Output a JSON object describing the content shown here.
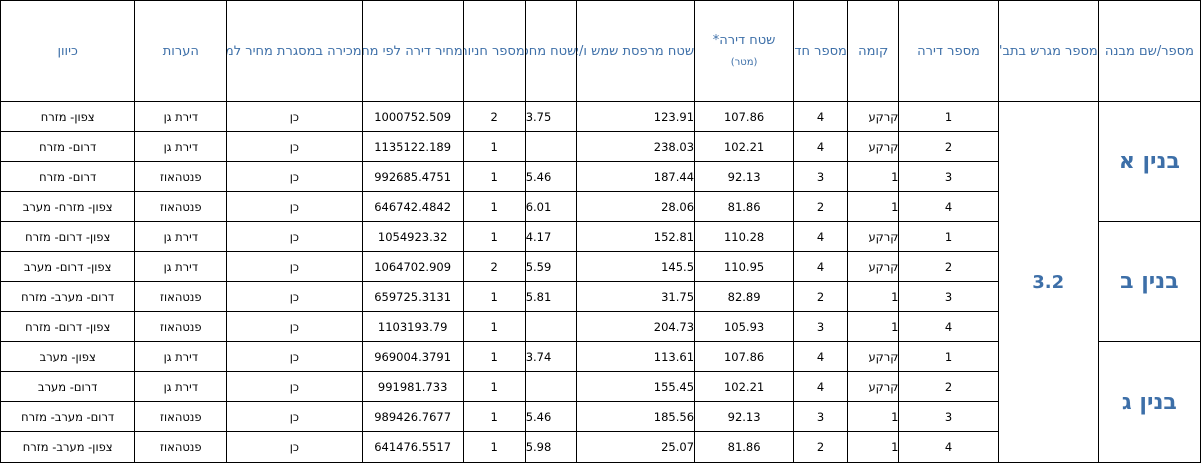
{
  "headers": {
    "building": "מספר/שם מבנה",
    "plot": "מספר מגרש בתב\"ע",
    "apartment": "מספר דירה",
    "floor": "קומה",
    "rooms": "מספר חדרים",
    "area": "שטח דירה*",
    "area_unit": "(מטר)",
    "balcony": "שטח מרפסת שמש ו/או שטח גינה צמודה",
    "storage": "שטח מחסן",
    "parking": "מספר חניות",
    "price": "מחיר דירה לפי מחיר למשתכן",
    "sold": "מכירה במסגרת מחיר למשתכן (כן/לא)",
    "notes": "הערות",
    "direction": "כיוון"
  },
  "plot_number": "3.2",
  "buildings": [
    {
      "name": "בנין א",
      "rows": [
        {
          "apt": "1",
          "floor": "קרקע",
          "rooms": "4",
          "area": "107.86",
          "balcony": "123.91",
          "storage": "3.75",
          "parking": "2",
          "price": "1000752.509",
          "sold": "כן",
          "notes": "דירת גן",
          "direction": "צפון- מזרח"
        },
        {
          "apt": "2",
          "floor": "קרקע",
          "rooms": "4",
          "area": "102.21",
          "balcony": "238.03",
          "storage": "",
          "parking": "1",
          "price": "1135122.189",
          "sold": "כן",
          "notes": "דירת גן",
          "direction": "דרום- מזרח"
        },
        {
          "apt": "3",
          "floor": "1",
          "rooms": "3",
          "area": "92.13",
          "balcony": "187.44",
          "storage": "5.46",
          "parking": "1",
          "price": "992685.4751",
          "sold": "כן",
          "notes": "פנטהאוז",
          "direction": "דרום- מזרח"
        },
        {
          "apt": "4",
          "floor": "1",
          "rooms": "2",
          "area": "81.86",
          "balcony": "28.06",
          "storage": "6.01",
          "parking": "1",
          "price": "646742.4842",
          "sold": "כן",
          "notes": "פנטהאוז",
          "direction": "צפון- מזרח- מערב"
        }
      ]
    },
    {
      "name": "בנין ב",
      "rows": [
        {
          "apt": "1",
          "floor": "קרקע",
          "rooms": "4",
          "area": "110.28",
          "balcony": "152.81",
          "storage": "4.17",
          "parking": "1",
          "price": "1054923.32",
          "sold": "כן",
          "notes": "דירת גן",
          "direction": "צפון- דרום- מזרח"
        },
        {
          "apt": "2",
          "floor": "קרקע",
          "rooms": "4",
          "area": "110.95",
          "balcony": "145.5",
          "storage": "5.59",
          "parking": "2",
          "price": "1064702.909",
          "sold": "כן",
          "notes": "דירת גן",
          "direction": "צפון- דרום- מערב"
        },
        {
          "apt": "3",
          "floor": "1",
          "rooms": "2",
          "area": "82.89",
          "balcony": "31.75",
          "storage": "5.81",
          "parking": "1",
          "price": "659725.3131",
          "sold": "כן",
          "notes": "פנטהאוז",
          "direction": "דרום- מערב- מזרח"
        },
        {
          "apt": "4",
          "floor": "1",
          "rooms": "3",
          "area": "105.93",
          "balcony": "204.73",
          "storage": "",
          "parking": "1",
          "price": "1103193.79",
          "sold": "כן",
          "notes": "פנטהאוז",
          "direction": "צפון- דרום- מזרח"
        }
      ]
    },
    {
      "name": "בנין ג",
      "rows": [
        {
          "apt": "1",
          "floor": "קרקע",
          "rooms": "4",
          "area": "107.86",
          "balcony": "113.61",
          "storage": "3.74",
          "parking": "1",
          "price": "969004.3791",
          "sold": "כן",
          "notes": "דירת גן",
          "direction": "צפון- מערב"
        },
        {
          "apt": "2",
          "floor": "קרקע",
          "rooms": "4",
          "area": "102.21",
          "balcony": "155.45",
          "storage": "",
          "parking": "1",
          "price": "991981.733",
          "sold": "כן",
          "notes": "דירת גן",
          "direction": "דרום- מערב"
        },
        {
          "apt": "3",
          "floor": "1",
          "rooms": "3",
          "area": "92.13",
          "balcony": "185.56",
          "storage": "5.46",
          "parking": "1",
          "price": "989426.7677",
          "sold": "כן",
          "notes": "פנטהאוז",
          "direction": "דרום- מערב- מזרח"
        },
        {
          "apt": "4",
          "floor": "1",
          "rooms": "2",
          "area": "81.86",
          "balcony": "25.07",
          "storage": "5.98",
          "parking": "1",
          "price": "641476.5517",
          "sold": "כן",
          "notes": "פנטהאוז",
          "direction": "צפון- מערב- מזרח"
        }
      ]
    }
  ]
}
